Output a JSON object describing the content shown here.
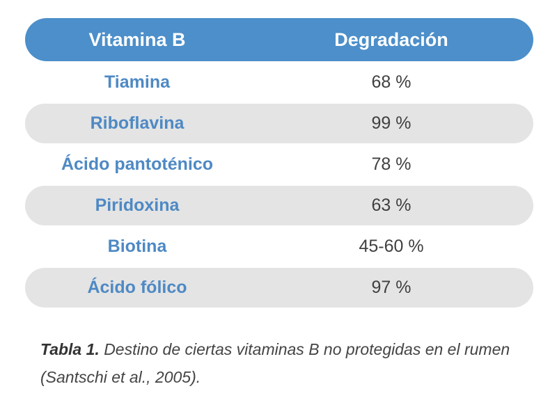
{
  "table": {
    "headers": [
      "Vitamina B",
      "Degradación"
    ],
    "header_color": "#4c8fca",
    "name_color": "#4e89c4",
    "stripe_color": "#e4e4e4",
    "rows": [
      {
        "name": "Tiamina",
        "value": "68 %"
      },
      {
        "name": "Riboflavina",
        "value": "99 %"
      },
      {
        "name": "Ácido pantoténico",
        "value": "78 %"
      },
      {
        "name": "Piridoxina",
        "value": "63 %"
      },
      {
        "name": "Biotina",
        "value": "45-60 %"
      },
      {
        "name": "Ácido fólico",
        "value": "97 %"
      }
    ]
  },
  "caption": {
    "label": "Tabla 1.",
    "text": "Destino de ciertas vitaminas B no protegidas en el rumen",
    "source": "(Santschi et al., 2005)."
  }
}
